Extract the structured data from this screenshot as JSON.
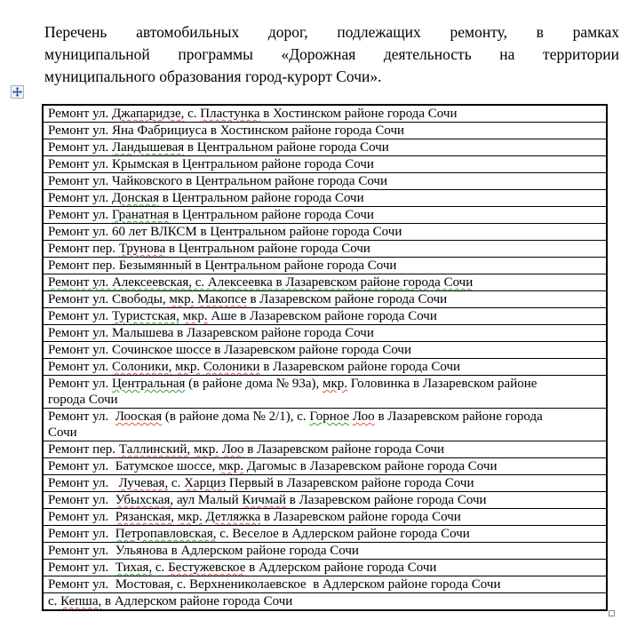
{
  "document": {
    "title_lines": [
      "Перечень автомобильных дорог, подлежащих ремонту, в рамках",
      "муниципальной программы «Дорожная деятельность на территории",
      "муниципального образования город-курорт Сочи»."
    ]
  },
  "icons": {
    "move_handle": "four-way-arrow-icon",
    "resize_handle": "resize-square-icon"
  },
  "colors": {
    "text": "#000000",
    "table_border": "#000000",
    "spelling_underline": "#e0524e",
    "grammar_underline": "#3b9e3f",
    "move_handle_arrow": "#2e5496",
    "resize_handle_border": "#8a8a8a"
  },
  "table": {
    "rows": [
      {
        "segments": [
          {
            "t": "Ремонт ул. "
          },
          {
            "t": "Джапаридзе,",
            "u": "red"
          },
          {
            "t": " с. "
          },
          {
            "t": "Пластунка",
            "u": "red"
          },
          {
            "t": " в Хостинском районе города Сочи"
          }
        ]
      },
      {
        "segments": [
          {
            "t": "Ремонт ул. Яна Фабрициуса в Хостинском районе города Сочи"
          }
        ]
      },
      {
        "segments": [
          {
            "t": "Ремонт ул. "
          },
          {
            "t": "Ландышевая",
            "u": "green"
          },
          {
            "t": " в Центральном районе города Сочи"
          }
        ]
      },
      {
        "segments": [
          {
            "t": "Ремонт ул. Крымская в Центральном районе города Сочи"
          }
        ]
      },
      {
        "segments": [
          {
            "t": "Ремонт ул. Чайковского в Центральном районе города Сочи"
          }
        ]
      },
      {
        "segments": [
          {
            "t": "Ремонт ул. "
          },
          {
            "t": "Донская",
            "u": "green"
          },
          {
            "t": " в Центральном районе города Сочи"
          }
        ]
      },
      {
        "segments": [
          {
            "t": "Ремонт ул. "
          },
          {
            "t": "Гранатная",
            "u": "green"
          },
          {
            "t": " в Центральном районе города Сочи"
          }
        ]
      },
      {
        "segments": [
          {
            "t": "Ремонт ул. 60 лет ВЛКСМ в Центральном районе города Сочи"
          }
        ]
      },
      {
        "segments": [
          {
            "t": "Ремонт пер. "
          },
          {
            "t": "Трунова",
            "u": "red"
          },
          {
            "t": " в Центральном районе города Сочи"
          }
        ]
      },
      {
        "segments": [
          {
            "t": "Ремонт пер. Безымянный в Центральном районе города Сочи"
          }
        ]
      },
      {
        "segments": [
          {
            "t": "Ремонт ул. Алексеевская, с. Алексеевка в Лазаревском районе города Сочи",
            "u": "green"
          }
        ]
      },
      {
        "segments": [
          {
            "t": "Ремонт ул. Свободы, "
          },
          {
            "t": "мкр.",
            "u": "red"
          },
          {
            "t": " "
          },
          {
            "t": "Макопсе",
            "u": "red"
          },
          {
            "t": " в Лазаревском районе города Сочи"
          }
        ]
      },
      {
        "segments": [
          {
            "t": "Ремонт ул. "
          },
          {
            "t": "Туристская,",
            "u": "green"
          },
          {
            "t": " "
          },
          {
            "t": "мкр.",
            "u": "red"
          },
          {
            "t": " Аше в Лазаревском районе города Сочи"
          }
        ]
      },
      {
        "segments": [
          {
            "t": "Ремонт ул. Малышева в Лазаревском районе города Сочи"
          }
        ]
      },
      {
        "segments": [
          {
            "t": "Ремонт ул. Сочинское шоссе в Лазаревском районе города Сочи"
          }
        ]
      },
      {
        "segments": [
          {
            "t": "Ремонт ул. "
          },
          {
            "t": "Солоники,",
            "u": "red"
          },
          {
            "t": " "
          },
          {
            "t": "мкр.",
            "u": "red"
          },
          {
            "t": " "
          },
          {
            "t": "Солоники",
            "u": "red"
          },
          {
            "t": " в Лазаревском районе города Сочи"
          }
        ]
      },
      {
        "segments": [
          {
            "t": "Ремонт ул. "
          },
          {
            "t": "Центральная",
            "u": "green"
          },
          {
            "t": " (в районе дома № 93а), "
          },
          {
            "t": "мкр.",
            "u": "red"
          },
          {
            "t": " Головинка в Лазаревском районе\nгорода Сочи"
          }
        ]
      },
      {
        "segments": [
          {
            "t": "Ремонт ул.  "
          },
          {
            "t": "Лооская",
            "u": "red"
          },
          {
            "t": " (в районе дома № 2/1), с. "
          },
          {
            "t": "Горное",
            "u": "green"
          },
          {
            "t": " "
          },
          {
            "t": "Лоо",
            "u": "red"
          },
          {
            "t": " в Лазаревском районе города\nСочи"
          }
        ]
      },
      {
        "segments": [
          {
            "t": "Ремонт пер. "
          },
          {
            "t": "Таллинский,",
            "u": "red"
          },
          {
            "t": " "
          },
          {
            "t": "мкр.",
            "u": "red"
          },
          {
            "t": " "
          },
          {
            "t": "Лоо",
            "u": "red"
          },
          {
            "t": " в Лазаревском районе города Сочи"
          }
        ]
      },
      {
        "segments": [
          {
            "t": "Ремонт ул.  Батумское шоссе, "
          },
          {
            "t": "мкр.",
            "u": "red"
          },
          {
            "t": " Дагомыс в Лазаревском районе города Сочи"
          }
        ]
      },
      {
        "segments": [
          {
            "t": "Ремонт ул.   "
          },
          {
            "t": "Лучевая,",
            "u": "red"
          },
          {
            "t": " с. "
          },
          {
            "t": "Харциз",
            "u": "red"
          },
          {
            "t": " Первый в Лазаревском районе города Сочи"
          }
        ]
      },
      {
        "segments": [
          {
            "t": "Ремонт ул.  "
          },
          {
            "t": "Убыхская,",
            "u": "red"
          },
          {
            "t": " аул Малый "
          },
          {
            "t": "Кичмай",
            "u": "red"
          },
          {
            "t": " в Лазаревском районе города Сочи"
          }
        ]
      },
      {
        "segments": [
          {
            "t": "Ремонт ул.  "
          },
          {
            "t": "Рязанская,",
            "u": "red"
          },
          {
            "t": " "
          },
          {
            "t": "мкр.",
            "u": "red"
          },
          {
            "t": " "
          },
          {
            "t": "Детляжка",
            "u": "red"
          },
          {
            "t": " в Лазаревском районе города Сочи"
          }
        ]
      },
      {
        "segments": [
          {
            "t": "Ремонт ул.  "
          },
          {
            "t": "Петропавловская,",
            "u": "green"
          },
          {
            "t": " с. Веселое в Адлерском районе города Сочи"
          }
        ]
      },
      {
        "segments": [
          {
            "t": "Ремонт ул.  Ульянова в Адлерском районе города Сочи"
          }
        ]
      },
      {
        "segments": [
          {
            "t": "Ремонт ул.  "
          },
          {
            "t": "Тихая,",
            "u": "green"
          },
          {
            "t": " с. "
          },
          {
            "t": "Бестужевское",
            "u": "red"
          },
          {
            "t": " в Адлерском районе города Сочи"
          }
        ]
      },
      {
        "segments": [
          {
            "t": "Ремонт ул.  Мостовая, с. Верхнениколаевское  в Адлерском районе города Сочи"
          }
        ]
      },
      {
        "segments": [
          {
            "t": "с. "
          },
          {
            "t": "Кепша,",
            "u": "red"
          },
          {
            "t": " в Адлерском районе города Сочи"
          }
        ]
      }
    ]
  }
}
